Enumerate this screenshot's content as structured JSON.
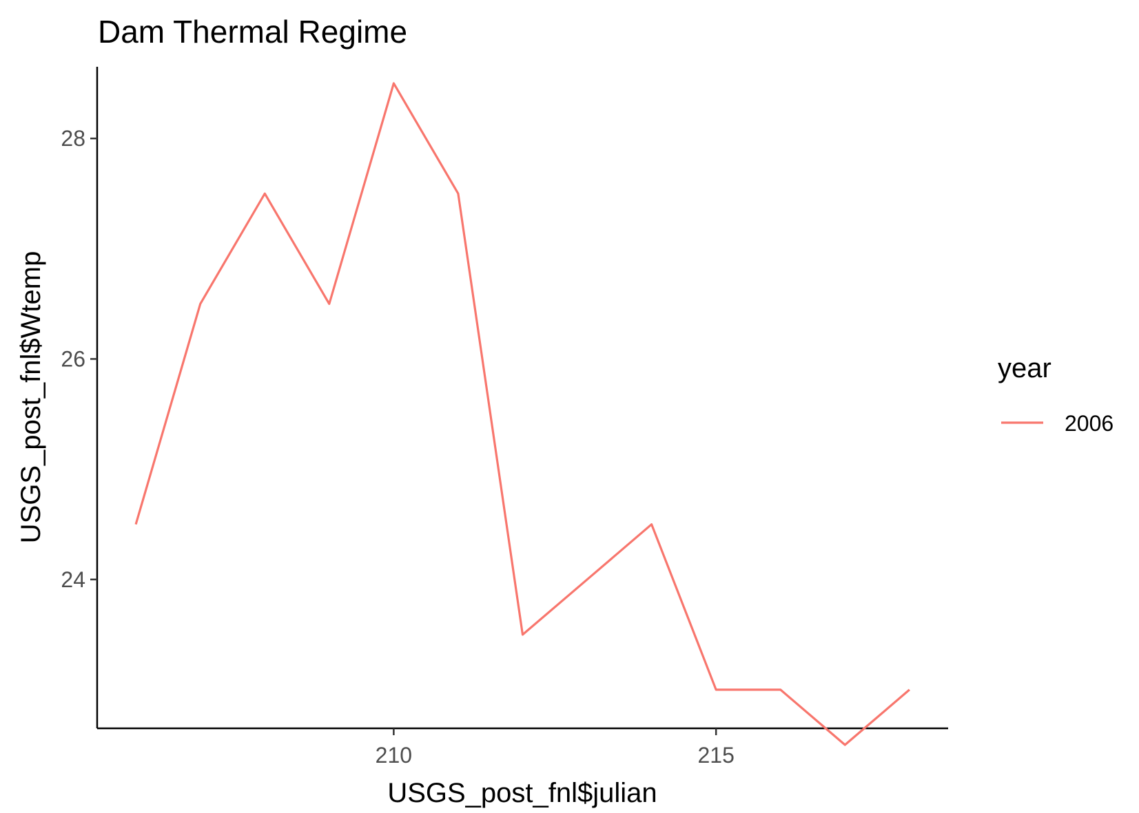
{
  "chart_data": {
    "type": "line",
    "title": "Dam Thermal Regime",
    "xlabel": "USGS_post_fnl$julian",
    "ylabel": "USGS_post_fnl$Wtemp",
    "xlim": [
      205.4,
      218.6
    ],
    "ylim": [
      22.65,
      28.65
    ],
    "x_ticks": [
      210,
      215
    ],
    "y_ticks": [
      24,
      26,
      28
    ],
    "grid": false,
    "legend": {
      "title": "year",
      "position": "right",
      "entries": [
        "2006"
      ]
    },
    "series": [
      {
        "name": "2006",
        "color": "#F8766D",
        "x": [
          206,
          207,
          208,
          209,
          210,
          211,
          212,
          213,
          214,
          215,
          216,
          217,
          218
        ],
        "y": [
          24.5,
          26.5,
          27.5,
          26.5,
          28.5,
          27.5,
          23.5,
          24.0,
          24.5,
          23.0,
          23.0,
          22.5,
          23.0
        ]
      }
    ]
  }
}
